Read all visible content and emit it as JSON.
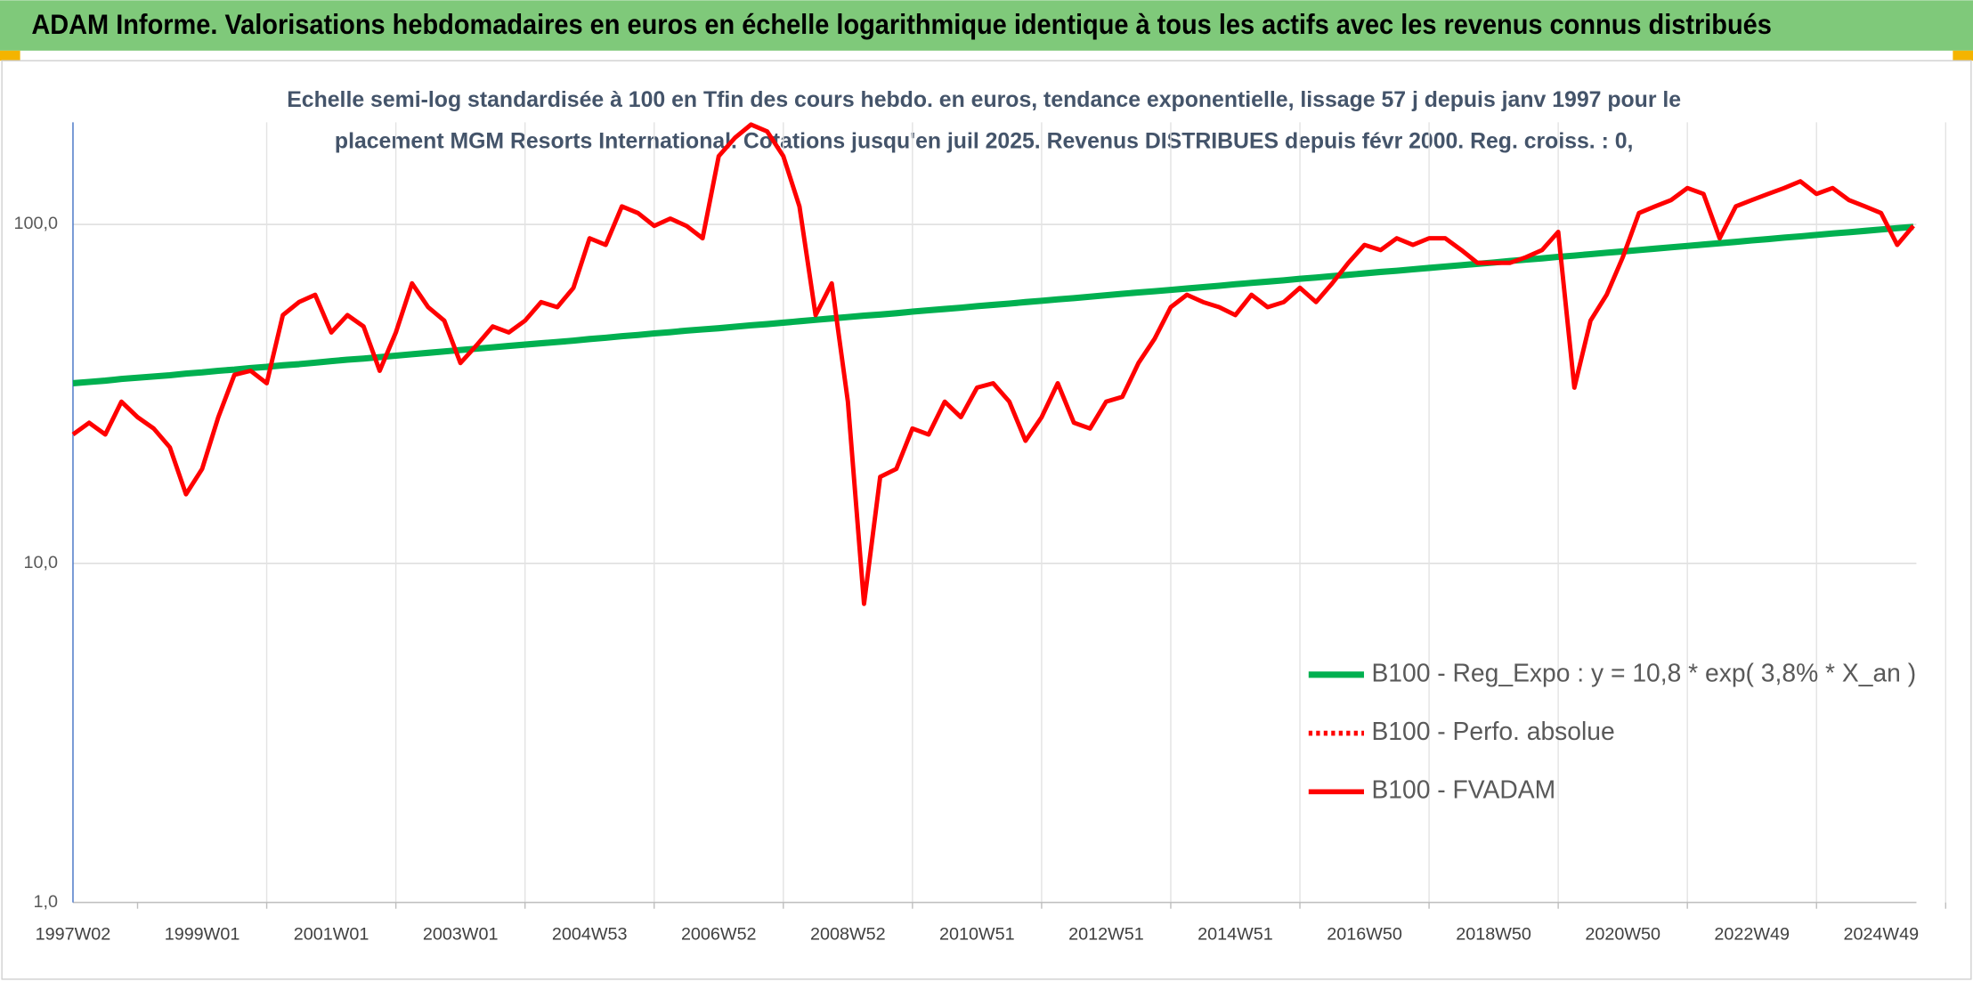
{
  "header": {
    "title": "ADAM Informe. Valorisations hebdomadaires en euros en échelle logarithmique identique à tous les actifs avec les revenus connus distribués"
  },
  "chart_data": {
    "type": "line",
    "subtitle": [
      "Echelle semi-log standardisée à 100 en Tfin des cours hebdo. en euros, tendance exponentielle, lissage 57 j depuis janv 1997 pour le",
      "placement MGM Resorts International. Cotations jusqu'en juil 2025. Revenus DISTRIBUES depuis févr 2000. Reg. croiss. : 0,"
    ],
    "log_scale": true,
    "grid": true,
    "legend": "lower right",
    "ylim": [
      1,
      200
    ],
    "yticks": [
      {
        "value": 1,
        "label": "1,0"
      },
      {
        "value": 10,
        "label": "10,0"
      },
      {
        "value": 100,
        "label": "100,0"
      }
    ],
    "categories": [
      "1997W02",
      null,
      null,
      null,
      null,
      null,
      null,
      null,
      "1999W01",
      null,
      null,
      null,
      null,
      null,
      null,
      null,
      "2001W01",
      null,
      null,
      null,
      null,
      null,
      null,
      null,
      "2003W01",
      null,
      null,
      null,
      null,
      null,
      null,
      null,
      "2004W53",
      null,
      null,
      null,
      null,
      null,
      null,
      null,
      "2006W52",
      null,
      null,
      null,
      null,
      null,
      null,
      null,
      "2008W52",
      null,
      null,
      null,
      null,
      null,
      null,
      null,
      "2010W51",
      null,
      null,
      null,
      null,
      null,
      null,
      null,
      "2012W51",
      null,
      null,
      null,
      null,
      null,
      null,
      null,
      "2014W51",
      null,
      null,
      null,
      null,
      null,
      null,
      null,
      "2016W50",
      null,
      null,
      null,
      null,
      null,
      null,
      null,
      "2018W50",
      null,
      null,
      null,
      null,
      null,
      null,
      null,
      "2020W50",
      null,
      null,
      null,
      null,
      null,
      null,
      null,
      "2022W49",
      null,
      null,
      null,
      null,
      null,
      null,
      null,
      "2024W49",
      null,
      null
    ],
    "series": [
      {
        "name": "B100 - Reg_Expo : y = 10,8 * exp( 3,8% *  X_an )",
        "color": "#00b050",
        "values": [
          34.0,
          34.3,
          34.6,
          35.0,
          35.3,
          35.6,
          35.9,
          36.3,
          36.6,
          37.0,
          37.3,
          37.7,
          38.0,
          38.4,
          38.7,
          39.1,
          39.5,
          39.9,
          40.2,
          40.6,
          41.0,
          41.4,
          41.8,
          42.2,
          42.6,
          43.0,
          43.4,
          43.8,
          44.2,
          44.6,
          45.0,
          45.4,
          45.9,
          46.3,
          46.8,
          47.2,
          47.7,
          48.1,
          48.6,
          49.0,
          49.4,
          49.9,
          50.4,
          50.8,
          51.3,
          51.8,
          52.3,
          52.8,
          53.3,
          53.8,
          54.2,
          54.7,
          55.3,
          55.8,
          56.3,
          56.8,
          57.4,
          57.9,
          58.4,
          59.0,
          59.5,
          60.1,
          60.6,
          61.2,
          61.8,
          62.4,
          63.0,
          63.5,
          64.1,
          64.7,
          65.3,
          65.9,
          66.6,
          67.2,
          67.8,
          68.4,
          69.1,
          69.7,
          70.4,
          71.0,
          71.7,
          72.4,
          73.0,
          73.7,
          74.4,
          75.1,
          75.8,
          76.5,
          77.2,
          78.0,
          78.7,
          79.4,
          80.2,
          80.9,
          81.7,
          82.5,
          83.2,
          84.0,
          84.8,
          85.6,
          86.4,
          87.2,
          88.0,
          88.8,
          89.7,
          90.5,
          91.4,
          92.2,
          93.1,
          94.0,
          94.8,
          95.7,
          96.6,
          97.5,
          98.4
        ]
      },
      {
        "name": "B100 - Perfo. absolue",
        "color": "#ff0000",
        "dashed": true
      },
      {
        "name": "B100 - FVADAM",
        "color": "#ff0000",
        "values": [
          24,
          26,
          24,
          30,
          27,
          25,
          22,
          16,
          19,
          27,
          36,
          37,
          34,
          54,
          59,
          62,
          48,
          54,
          50,
          37,
          48,
          67,
          57,
          52,
          39,
          44,
          50,
          48,
          52,
          59,
          57,
          65,
          91,
          87,
          113,
          108,
          99,
          104,
          99,
          91,
          159,
          180,
          197,
          188,
          159,
          113,
          54,
          67,
          30,
          7.6,
          18,
          19,
          25,
          24,
          30,
          27,
          33,
          34,
          30,
          23,
          27,
          34,
          26,
          25,
          30,
          31,
          39,
          46,
          57,
          62,
          59,
          57,
          54,
          62,
          57,
          59,
          65,
          59,
          67,
          77,
          87,
          84,
          91,
          87,
          91,
          91,
          84,
          77,
          77,
          77,
          80,
          84,
          95,
          33,
          52,
          62,
          80,
          108,
          113,
          118,
          128,
          123,
          91,
          113,
          118,
          123,
          128,
          134,
          123,
          128,
          118,
          113,
          108,
          87,
          99
        ]
      }
    ]
  }
}
